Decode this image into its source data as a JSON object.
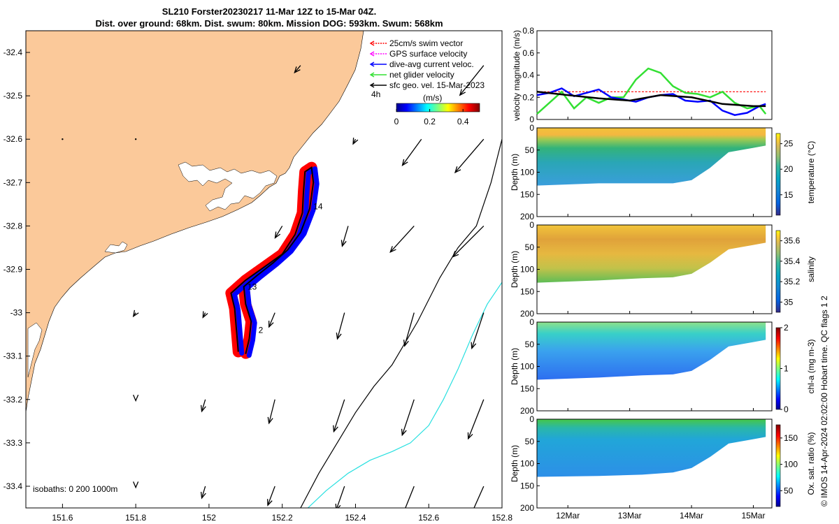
{
  "title": {
    "line1": "SL210 Forster20230217 11-Mar 12Z to 15-Mar 04Z.",
    "line2": "Dist. over ground: 68km. Dist. swum: 80km. Mission DOG: 593km. Swum: 568km"
  },
  "credit": "© IMOS 14-Apr-2024 02:02:00 Hobart time. QC flags 1  2",
  "colors": {
    "land": "#fbc99a",
    "red": "#ff0000",
    "blue": "#0000ff",
    "green": "#33e033",
    "black": "#000000",
    "cyan": "#28e0e0"
  },
  "chart_data": [
    {
      "type": "map",
      "xlim": [
        151.5,
        152.8
      ],
      "ylim": [
        -33.45,
        -32.35
      ],
      "x_ticks": [
        151.6,
        151.8,
        152,
        152.2,
        152.4,
        152.6,
        152.8
      ],
      "x_tick_labels": [
        "151.6",
        "151.8",
        "152",
        "152.2",
        "152.4",
        "152.6",
        "152.8"
      ],
      "y_ticks": [
        -32.4,
        -32.5,
        -32.6,
        -32.7,
        -32.8,
        -32.9,
        -33,
        -33.1,
        -33.2,
        -33.3,
        -33.4
      ],
      "y_tick_labels": [
        "-32.4",
        "-32.5",
        "-32.6",
        "-32.7",
        "-32.8",
        "-32.9",
        "-33",
        "-33.1",
        "-33.2",
        "-33.3",
        "-33.4"
      ],
      "legend": {
        "placement": "top-right",
        "entries": [
          {
            "label": "25cm/s swim vector",
            "color": "#ff0000",
            "style": "dashed"
          },
          {
            "label": "GPS surface velocity",
            "color": "#ff00ff",
            "style": "dashed"
          },
          {
            "label": "dive-avg current veloc.",
            "color": "#0000ff",
            "style": "solid"
          },
          {
            "label": "net glider velocity",
            "color": "#33e033",
            "style": "solid"
          },
          {
            "label": "sfc geo. vel. 15-Mar-2023",
            "color": "#000000",
            "style": "solid"
          }
        ],
        "scale_label": "4h"
      },
      "colorbar": {
        "label": "(m/s)",
        "ticks": [
          "0",
          "0.2",
          "0.4"
        ],
        "range": [
          0,
          0.5
        ]
      },
      "isobath_label": "isobaths: 0   200  1000m",
      "track_labels": [
        {
          "text": "14",
          "lon": 152.285,
          "lat": -32.755
        },
        {
          "text": "13",
          "lon": 152.105,
          "lat": -32.94
        },
        {
          "text": "2",
          "lon": 152.135,
          "lat": -33.04
        }
      ],
      "track": [
        {
          "lon": 152.08,
          "lat": -33.09
        },
        {
          "lon": 152.075,
          "lat": -33.04
        },
        {
          "lon": 152.07,
          "lat": -32.99
        },
        {
          "lon": 152.06,
          "lat": -32.955
        },
        {
          "lon": 152.1,
          "lat": -32.925
        },
        {
          "lon": 152.15,
          "lat": -32.895
        },
        {
          "lon": 152.2,
          "lat": -32.865
        },
        {
          "lon": 152.235,
          "lat": -32.82
        },
        {
          "lon": 152.255,
          "lat": -32.77
        },
        {
          "lon": 152.258,
          "lat": -32.72
        },
        {
          "lon": 152.262,
          "lat": -32.675
        },
        {
          "lon": 152.28,
          "lat": -32.665
        },
        {
          "lon": 152.285,
          "lat": -32.7
        },
        {
          "lon": 152.275,
          "lat": -32.76
        },
        {
          "lon": 152.25,
          "lat": -32.815
        },
        {
          "lon": 152.215,
          "lat": -32.855
        },
        {
          "lon": 152.175,
          "lat": -32.885
        },
        {
          "lon": 152.13,
          "lat": -32.915
        },
        {
          "lon": 152.095,
          "lat": -32.94
        },
        {
          "lon": 152.1,
          "lat": -32.98
        },
        {
          "lon": 152.115,
          "lat": -33.02
        },
        {
          "lon": 152.11,
          "lat": -33.06
        },
        {
          "lon": 152.1,
          "lat": -33.095
        }
      ],
      "current_vectors": [
        {
          "lon": 152.25,
          "lat": -32.43,
          "u": -0.05,
          "v": -0.06
        },
        {
          "lon": 152.75,
          "lat": -32.43,
          "u": -0.2,
          "v": -0.25
        },
        {
          "lon": 151.6,
          "lat": -32.6,
          "u": 0,
          "v": 0
        },
        {
          "lon": 151.8,
          "lat": -32.6,
          "u": 0,
          "v": 0
        },
        {
          "lon": 152.4,
          "lat": -32.6,
          "u": -0.02,
          "v": -0.04
        },
        {
          "lon": 152.58,
          "lat": -32.6,
          "u": -0.16,
          "v": -0.22
        },
        {
          "lon": 152.75,
          "lat": -32.6,
          "u": -0.24,
          "v": -0.28
        },
        {
          "lon": 152.2,
          "lat": -32.8,
          "u": -0.06,
          "v": -0.1
        },
        {
          "lon": 152.38,
          "lat": -32.8,
          "u": -0.05,
          "v": -0.17
        },
        {
          "lon": 152.56,
          "lat": -32.8,
          "u": -0.2,
          "v": -0.22
        },
        {
          "lon": 152.75,
          "lat": -32.8,
          "u": -0.26,
          "v": -0.26
        },
        {
          "lon": 151.8,
          "lat": -33.0,
          "u": -0.02,
          "v": -0.03
        },
        {
          "lon": 151.99,
          "lat": -33.0,
          "u": -0.02,
          "v": -0.04
        },
        {
          "lon": 152.18,
          "lat": -33.0,
          "u": -0.05,
          "v": -0.12
        },
        {
          "lon": 152.37,
          "lat": -33.0,
          "u": -0.06,
          "v": -0.22
        },
        {
          "lon": 152.56,
          "lat": -33.0,
          "u": -0.08,
          "v": -0.28
        },
        {
          "lon": 152.75,
          "lat": -33.0,
          "u": -0.1,
          "v": -0.3
        },
        {
          "lon": 151.8,
          "lat": -33.2,
          "u": 0,
          "v": -0.01
        },
        {
          "lon": 151.99,
          "lat": -33.2,
          "u": -0.03,
          "v": -0.1
        },
        {
          "lon": 152.18,
          "lat": -33.2,
          "u": -0.05,
          "v": -0.2
        },
        {
          "lon": 152.37,
          "lat": -33.2,
          "u": -0.09,
          "v": -0.27
        },
        {
          "lon": 152.56,
          "lat": -33.2,
          "u": -0.1,
          "v": -0.3
        },
        {
          "lon": 152.75,
          "lat": -33.2,
          "u": -0.13,
          "v": -0.33
        },
        {
          "lon": 151.8,
          "lat": -33.4,
          "u": 0,
          "v": -0.01
        },
        {
          "lon": 151.99,
          "lat": -33.4,
          "u": -0.03,
          "v": -0.1
        },
        {
          "lon": 152.18,
          "lat": -33.4,
          "u": -0.06,
          "v": -0.16
        },
        {
          "lon": 152.37,
          "lat": -33.4,
          "u": -0.07,
          "v": -0.2
        },
        {
          "lon": 152.56,
          "lat": -33.4,
          "u": -0.1,
          "v": -0.25
        },
        {
          "lon": 152.75,
          "lat": -33.4,
          "u": -0.12,
          "v": -0.27
        }
      ],
      "isobath_200": [
        {
          "lon": 152.8,
          "lat": -32.6
        },
        {
          "lon": 152.77,
          "lat": -32.7
        },
        {
          "lon": 152.73,
          "lat": -32.8
        },
        {
          "lon": 152.68,
          "lat": -32.85
        },
        {
          "lon": 152.63,
          "lat": -32.92
        },
        {
          "lon": 152.57,
          "lat": -33.02
        },
        {
          "lon": 152.5,
          "lat": -33.12
        },
        {
          "lon": 152.45,
          "lat": -33.17
        },
        {
          "lon": 152.4,
          "lat": -33.23
        },
        {
          "lon": 152.35,
          "lat": -33.3
        },
        {
          "lon": 152.3,
          "lat": -33.37
        },
        {
          "lon": 152.25,
          "lat": -33.45
        }
      ],
      "isobath_1000": [
        {
          "lon": 152.8,
          "lat": -32.93
        },
        {
          "lon": 152.76,
          "lat": -32.98
        },
        {
          "lon": 152.72,
          "lat": -33.05
        },
        {
          "lon": 152.68,
          "lat": -33.13
        },
        {
          "lon": 152.64,
          "lat": -33.2
        },
        {
          "lon": 152.6,
          "lat": -33.26
        },
        {
          "lon": 152.55,
          "lat": -33.3
        },
        {
          "lon": 152.5,
          "lat": -33.32
        },
        {
          "lon": 152.44,
          "lat": -33.34
        },
        {
          "lon": 152.38,
          "lat": -33.37
        },
        {
          "lon": 152.32,
          "lat": -33.41
        },
        {
          "lon": 152.27,
          "lat": -33.45
        }
      ]
    },
    {
      "type": "line",
      "ylabel": "velocity magnitude (m/s)",
      "ylim": [
        0,
        0.8
      ],
      "y_ticks": [
        0,
        0.2,
        0.4,
        0.6,
        0.8
      ],
      "y_tick_labels": [
        "0",
        "0.2",
        "0.4",
        "0.6",
        "0.8"
      ],
      "xlim": [
        11.5,
        15.3
      ],
      "series": [
        {
          "color": "#ff0000",
          "style": "dashed",
          "x": [
            11.5,
            12,
            12.5,
            13,
            13.5,
            14,
            14.5,
            15,
            15.2
          ],
          "y": [
            0.25,
            0.25,
            0.25,
            0.25,
            0.25,
            0.25,
            0.25,
            0.25,
            0.25
          ]
        },
        {
          "color": "#33e033",
          "style": "solid",
          "x": [
            11.5,
            11.7,
            11.9,
            12.1,
            12.3,
            12.5,
            12.7,
            12.9,
            13.1,
            13.3,
            13.5,
            13.7,
            13.9,
            14.1,
            14.3,
            14.5,
            14.7,
            14.9,
            15.1,
            15.2
          ],
          "y": [
            0.05,
            0.15,
            0.25,
            0.1,
            0.2,
            0.15,
            0.2,
            0.2,
            0.36,
            0.46,
            0.42,
            0.3,
            0.24,
            0.23,
            0.2,
            0.25,
            0.15,
            0.1,
            0.12,
            0.05
          ]
        },
        {
          "color": "#0000ff",
          "style": "solid",
          "x": [
            11.5,
            11.7,
            11.9,
            12.1,
            12.3,
            12.5,
            12.7,
            12.9,
            13.1,
            13.3,
            13.5,
            13.7,
            13.9,
            14.1,
            14.3,
            14.5,
            14.7,
            14.9,
            15.1,
            15.2
          ],
          "y": [
            0.22,
            0.24,
            0.28,
            0.21,
            0.24,
            0.27,
            0.2,
            0.18,
            0.16,
            0.2,
            0.22,
            0.23,
            0.17,
            0.16,
            0.17,
            0.08,
            0.04,
            0.06,
            0.12,
            0.14
          ]
        },
        {
          "color": "#000000",
          "style": "solid",
          "x": [
            11.5,
            12,
            12.5,
            13,
            13.5,
            14,
            14.5,
            15,
            15.2
          ],
          "y": [
            0.25,
            0.22,
            0.19,
            0.17,
            0.22,
            0.2,
            0.14,
            0.12,
            0.12
          ]
        }
      ]
    },
    {
      "type": "heatmap",
      "ylabel": "Depth (m)",
      "colorbar_label": "temperature (°C)",
      "ylim": [
        0,
        200
      ],
      "y_ticks": [
        0,
        50,
        100,
        150,
        200
      ],
      "colorbar_ticks": [
        "15",
        "20",
        "25"
      ],
      "colorbar_range": [
        11,
        27
      ],
      "bottom_depth": {
        "x": [
          11.5,
          12.5,
          13.2,
          13.7,
          14.0,
          14.3,
          14.6,
          15.0,
          15.2
        ],
        "depth": [
          130,
          125,
          125,
          125,
          118,
          90,
          55,
          45,
          40
        ]
      },
      "surface_value": 24.5,
      "bottom_value": 17
    },
    {
      "type": "heatmap",
      "ylabel": "Depth (m)",
      "colorbar_label": "salinity",
      "ylim": [
        0,
        200
      ],
      "y_ticks": [
        0,
        50,
        100,
        150,
        200
      ],
      "colorbar_ticks": [
        "35",
        "35.2",
        "35.4",
        "35.6"
      ],
      "colorbar_range": [
        34.9,
        35.7
      ],
      "bottom_depth": {
        "x": [
          11.5,
          12.5,
          13.2,
          13.7,
          14.0,
          14.3,
          14.6,
          15.0,
          15.2
        ],
        "depth": [
          130,
          125,
          120,
          118,
          110,
          85,
          55,
          45,
          40
        ]
      },
      "surface_value": 35.55,
      "bottom_value": 35.3
    },
    {
      "type": "heatmap",
      "ylabel": "Depth (m)",
      "colorbar_label": "chl-a (mg m-3)",
      "xlim": [
        11.5,
        15.3
      ],
      "ylim": [
        0,
        200
      ],
      "y_ticks": [
        0,
        50,
        100,
        150,
        200
      ],
      "colorbar_ticks": [
        "0",
        "1",
        "2"
      ],
      "colorbar_range": [
        0,
        2
      ],
      "bottom_depth": {
        "x": [
          11.5,
          12.5,
          13.2,
          13.7,
          14.0,
          14.3,
          14.6,
          15.0,
          15.2
        ],
        "depth": [
          130,
          125,
          120,
          118,
          110,
          85,
          55,
          45,
          40
        ]
      },
      "surface_value": 0.8,
      "bottom_value": 0.5
    },
    {
      "type": "heatmap",
      "ylabel": "Depth (m)",
      "colorbar_label": "Ox. sat. ratio (%)",
      "ylim": [
        0,
        200
      ],
      "y_ticks": [
        0,
        50,
        100,
        150,
        200
      ],
      "x_ticks": [
        12,
        13,
        14,
        15
      ],
      "x_tick_labels": [
        "12Mar",
        "13Mar",
        "14Mar",
        "15Mar"
      ],
      "colorbar_ticks": [
        "50",
        "100",
        "150"
      ],
      "colorbar_range": [
        20,
        175
      ],
      "bottom_depth": {
        "x": [
          11.5,
          12.5,
          13.2,
          13.7,
          14.0,
          14.3,
          14.6,
          15.0,
          15.2
        ],
        "depth": [
          130,
          128,
          125,
          120,
          110,
          85,
          55,
          45,
          40
        ]
      },
      "surface_value": 105,
      "bottom_value": 80
    }
  ]
}
